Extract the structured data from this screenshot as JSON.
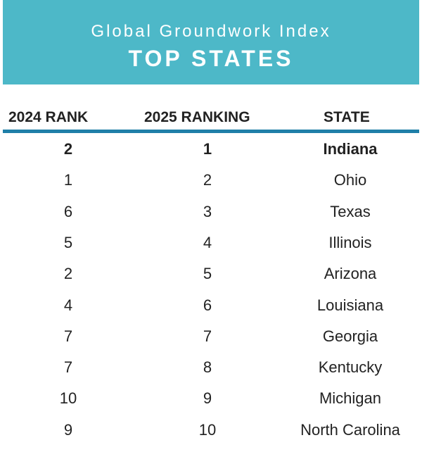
{
  "header": {
    "title": "Global Groundwork Index",
    "subtitle": "TOP STATES"
  },
  "colors": {
    "header_background": "#4db8c8",
    "header_text": "#ffffff",
    "rule": "#1f7fa8",
    "text": "#222222"
  },
  "chart_data": {
    "type": "table",
    "columns": [
      "2024 RANK",
      "2025 RANKING",
      "STATE"
    ],
    "rows": [
      {
        "rank_2024": "2",
        "ranking_2025": "1",
        "state": "Indiana",
        "highlight": true
      },
      {
        "rank_2024": "1",
        "ranking_2025": "2",
        "state": "Ohio",
        "highlight": false
      },
      {
        "rank_2024": "6",
        "ranking_2025": "3",
        "state": "Texas",
        "highlight": false
      },
      {
        "rank_2024": "5",
        "ranking_2025": "4",
        "state": "Illinois",
        "highlight": false
      },
      {
        "rank_2024": "2",
        "ranking_2025": "5",
        "state": "Arizona",
        "highlight": false
      },
      {
        "rank_2024": "4",
        "ranking_2025": "6",
        "state": "Louisiana",
        "highlight": false
      },
      {
        "rank_2024": "7",
        "ranking_2025": "7",
        "state": "Georgia",
        "highlight": false
      },
      {
        "rank_2024": "7",
        "ranking_2025": "8",
        "state": "Kentucky",
        "highlight": false
      },
      {
        "rank_2024": "10",
        "ranking_2025": "9",
        "state": "Michigan",
        "highlight": false
      },
      {
        "rank_2024": "9",
        "ranking_2025": "10",
        "state": "North Carolina",
        "highlight": false
      }
    ]
  }
}
